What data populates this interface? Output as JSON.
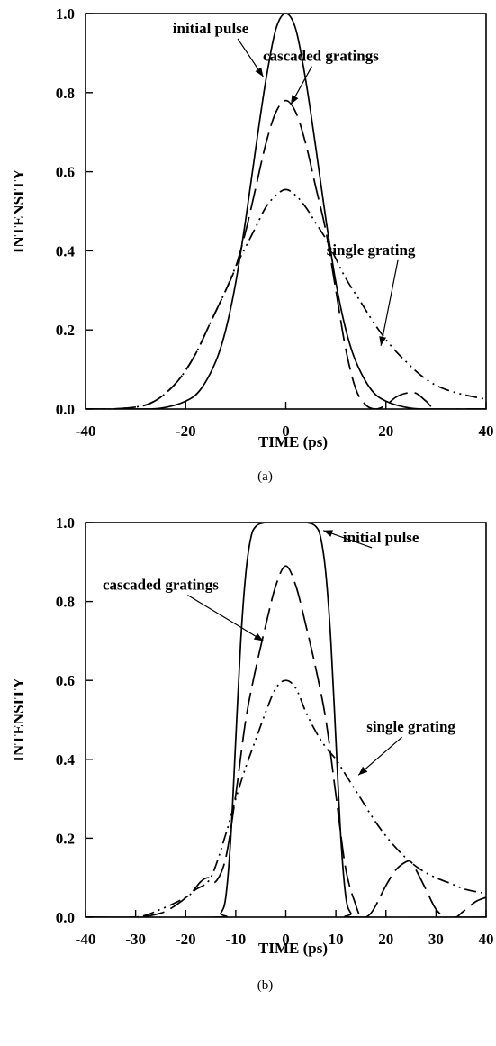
{
  "chart_data": [
    {
      "type": "line",
      "caption": "(a)",
      "xlabel": "TIME  (ps)",
      "ylabel": "INTENSITY",
      "xlim": [
        -40,
        40
      ],
      "ylim": [
        0,
        1.0
      ],
      "xticks": [
        "-40",
        "-20",
        "0",
        "20",
        "40"
      ],
      "yticks": [
        "0.0",
        "0.2",
        "0.4",
        "0.6",
        "0.8",
        "1.0"
      ],
      "grid": false,
      "series": [
        {
          "style": "solid",
          "x": [
            -40,
            -30,
            -25,
            -20,
            -17,
            -14,
            -12,
            -10,
            -8,
            -6,
            -4,
            -2,
            0,
            2,
            4,
            6,
            8,
            10,
            12,
            14,
            17,
            20,
            25,
            30,
            40
          ],
          "y": [
            0.0,
            0.0,
            0.002,
            0.02,
            0.05,
            0.12,
            0.2,
            0.32,
            0.48,
            0.66,
            0.83,
            0.96,
            1.0,
            0.96,
            0.83,
            0.66,
            0.48,
            0.32,
            0.2,
            0.12,
            0.05,
            0.02,
            0.002,
            0.0,
            0.0
          ]
        },
        {
          "style": "dashed",
          "x": [
            -40,
            -35,
            -30,
            -27,
            -24,
            -21,
            -18,
            -15,
            -12,
            -10,
            -8,
            -6,
            -4,
            -2,
            0,
            2,
            4,
            6,
            8,
            10,
            12,
            14,
            16,
            18,
            20,
            22,
            24,
            26,
            28,
            30,
            35,
            40
          ],
          "y": [
            0.0,
            0.0,
            0.005,
            0.015,
            0.04,
            0.08,
            0.14,
            0.22,
            0.3,
            0.36,
            0.45,
            0.56,
            0.67,
            0.75,
            0.78,
            0.75,
            0.67,
            0.56,
            0.45,
            0.3,
            0.15,
            0.05,
            0.01,
            0.0,
            0.01,
            0.03,
            0.04,
            0.04,
            0.02,
            0.0,
            0.0,
            0.0
          ]
        },
        {
          "style": "dash-dot-dot",
          "x": [
            -40,
            -35,
            -30,
            -27,
            -24,
            -21,
            -18,
            -15,
            -12,
            -10,
            -8,
            -6,
            -4,
            -2,
            0,
            2,
            4,
            6,
            8,
            10,
            12,
            15,
            18,
            21,
            24,
            27,
            30,
            33,
            36,
            40
          ],
          "y": [
            0.0,
            0.0,
            0.005,
            0.015,
            0.04,
            0.08,
            0.14,
            0.22,
            0.3,
            0.36,
            0.41,
            0.46,
            0.51,
            0.54,
            0.555,
            0.54,
            0.51,
            0.47,
            0.43,
            0.38,
            0.33,
            0.27,
            0.21,
            0.16,
            0.12,
            0.085,
            0.06,
            0.045,
            0.035,
            0.025
          ]
        }
      ],
      "annotations": [
        {
          "text": "initial pulse",
          "x": -15,
          "y": 0.95,
          "arrow_to": [
            -4.5,
            0.84
          ]
        },
        {
          "text": "cascaded gratings",
          "x": 7,
          "y": 0.88,
          "arrow_to": [
            1,
            0.77
          ]
        },
        {
          "text": "single grating",
          "x": 17,
          "y": 0.39,
          "arrow_to": [
            19,
            0.16
          ]
        }
      ]
    },
    {
      "type": "line",
      "caption": "(b)",
      "xlabel": "TIME (ps)",
      "ylabel": "INTENSITY",
      "xlim": [
        -40,
        40
      ],
      "ylim": [
        0,
        1.0
      ],
      "xticks": [
        "-40",
        "-30",
        "-20",
        "-10",
        "0",
        "10",
        "20",
        "30",
        "40"
      ],
      "yticks": [
        "0.0",
        "0.2",
        "0.4",
        "0.6",
        "0.8",
        "1.0"
      ],
      "grid": false,
      "series": [
        {
          "style": "solid",
          "x": [
            -40,
            -14,
            -13,
            -12,
            -11,
            -10,
            -9,
            -8,
            -7,
            -6,
            -4,
            0,
            4,
            6,
            7,
            8,
            9,
            10,
            11,
            12,
            13,
            14,
            40
          ],
          "y": [
            0.0,
            0.0,
            0.01,
            0.05,
            0.2,
            0.45,
            0.7,
            0.87,
            0.96,
            0.99,
            1.0,
            1.0,
            1.0,
            0.99,
            0.96,
            0.87,
            0.7,
            0.45,
            0.2,
            0.05,
            0.01,
            0.0,
            0.0
          ]
        },
        {
          "style": "dashed",
          "x": [
            -40,
            -30,
            -25,
            -22,
            -19,
            -17,
            -15.5,
            -14,
            -12,
            -10,
            -8,
            -6,
            -4,
            -2,
            0,
            2,
            4,
            6,
            8,
            10,
            12,
            14,
            15,
            16,
            17,
            18,
            20,
            22,
            24,
            25,
            26,
            28,
            30,
            32,
            34,
            35,
            36,
            38,
            40
          ],
          "y": [
            0.0,
            0.0,
            0.01,
            0.03,
            0.06,
            0.09,
            0.1,
            0.09,
            0.15,
            0.31,
            0.5,
            0.63,
            0.74,
            0.84,
            0.89,
            0.84,
            0.74,
            0.63,
            0.5,
            0.31,
            0.12,
            0.03,
            0.0,
            0.0,
            0.01,
            0.03,
            0.08,
            0.12,
            0.14,
            0.14,
            0.12,
            0.07,
            0.02,
            0.0,
            0.0,
            0.01,
            0.02,
            0.04,
            0.05
          ]
        },
        {
          "style": "dash-dot-dot",
          "x": [
            -40,
            -30,
            -25,
            -20,
            -18,
            -15,
            -12,
            -10,
            -8,
            -6,
            -4,
            -2,
            0,
            2,
            4,
            6,
            8,
            10,
            12,
            15,
            18,
            21,
            24,
            27,
            30,
            33,
            36,
            40
          ],
          "y": [
            0.0,
            0.0,
            0.02,
            0.05,
            0.07,
            0.1,
            0.21,
            0.3,
            0.38,
            0.45,
            0.52,
            0.58,
            0.6,
            0.58,
            0.52,
            0.47,
            0.43,
            0.4,
            0.36,
            0.3,
            0.24,
            0.19,
            0.15,
            0.12,
            0.1,
            0.085,
            0.07,
            0.06
          ]
        }
      ],
      "annotations": [
        {
          "text": "initial pulse",
          "x": 19,
          "y": 0.95,
          "arrow_to": [
            7.5,
            0.98
          ]
        },
        {
          "text": "cascaded gratings",
          "x": -25,
          "y": 0.83,
          "arrow_to": [
            -4.5,
            0.7
          ]
        },
        {
          "text": "single grating",
          "x": 25,
          "y": 0.47,
          "arrow_to": [
            14.5,
            0.36
          ]
        }
      ]
    }
  ]
}
